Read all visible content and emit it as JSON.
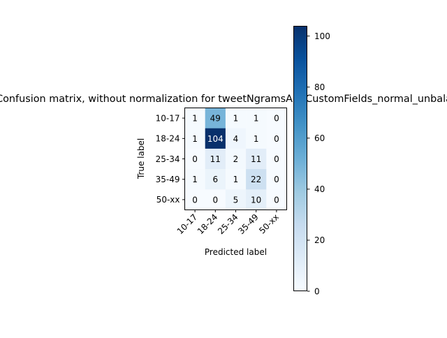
{
  "chart_data": {
    "type": "heatmap",
    "title": "Confusion matrix, without normalization for tweetNgramsAndCustomFields_normal_unbalanced",
    "xlabel": "Predicted label",
    "ylabel": "True label",
    "x_categories": [
      "10-17",
      "18-24",
      "25-34",
      "35-49",
      "50-xx"
    ],
    "y_categories": [
      "10-17",
      "18-24",
      "25-34",
      "35-49",
      "50-xx"
    ],
    "matrix": [
      [
        1,
        49,
        1,
        1,
        0
      ],
      [
        1,
        104,
        4,
        1,
        0
      ],
      [
        0,
        11,
        2,
        11,
        0
      ],
      [
        1,
        6,
        1,
        22,
        0
      ],
      [
        0,
        0,
        5,
        10,
        0
      ]
    ],
    "colormap": "Blues",
    "colorbar": {
      "range": [
        0,
        104
      ],
      "ticks": [
        0,
        20,
        40,
        60,
        80,
        100
      ]
    },
    "colors": {
      "low": "#f7fbff",
      "high": "#08306b"
    }
  }
}
